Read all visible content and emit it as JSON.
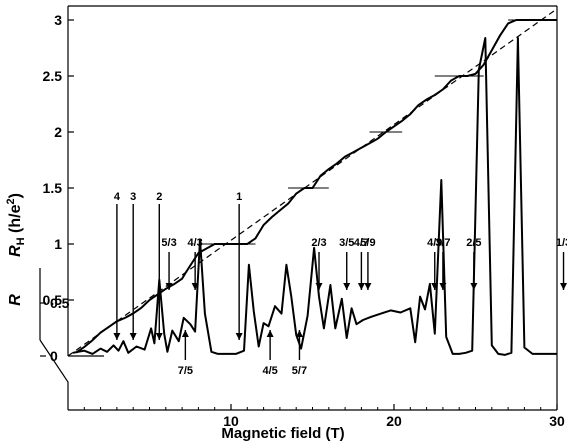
{
  "chart_data": {
    "type": "line",
    "title": "",
    "xlabel": "Magnetic field (T)",
    "ylabel_hall": "R_H (h/e²)",
    "ylabel_hall_parts": {
      "main": "R",
      "sub": "H",
      "rest": " (h/e",
      "sup": "2",
      "close": ")"
    },
    "ylabel_r": "R",
    "xlim": [
      0,
      30
    ],
    "ylim_hall": [
      0,
      3.1
    ],
    "x_ticks": [
      10,
      20,
      30
    ],
    "x_tick_labels": [
      "10",
      "20",
      "30"
    ],
    "y_ticks_hall": [
      0.5,
      1,
      1.5,
      2,
      2.5,
      3
    ],
    "y_tick_labels_hall": [
      "0.5",
      "1",
      "1.5",
      "2",
      "2.5",
      "3"
    ],
    "r_ticks": [
      0,
      0.5
    ],
    "r_tick_labels": [
      "0",
      "0.5"
    ],
    "grid": false,
    "legend": "none",
    "classical_hall_line": {
      "x": [
        0,
        30
      ],
      "y": [
        0,
        3.1
      ],
      "style": "dashed"
    },
    "hall_trace": {
      "x": [
        0.5,
        1,
        1.5,
        2,
        2.5,
        3,
        3.5,
        4,
        4.5,
        5,
        5.5,
        6,
        6.5,
        7,
        7.2,
        8,
        9,
        10,
        11,
        11.5,
        12,
        12.5,
        13,
        13.5,
        14,
        14.5,
        15,
        15.5,
        16,
        16.5,
        17,
        17.5,
        18,
        18.5,
        19,
        19.5,
        20,
        20.5,
        21,
        21.5,
        22,
        22.5,
        23,
        23.5,
        24,
        24.5,
        25,
        25.5,
        26,
        26.5,
        27,
        27.5,
        28,
        28.5,
        29,
        29.5,
        30
      ],
      "y": [
        0.03,
        0.08,
        0.14,
        0.21,
        0.26,
        0.31,
        0.34,
        0.38,
        0.43,
        0.5,
        0.55,
        0.6,
        0.64,
        0.69,
        0.74,
        0.92,
        1,
        1,
        1,
        1.05,
        1.17,
        1.24,
        1.3,
        1.36,
        1.45,
        1.5,
        1.5,
        1.61,
        1.67,
        1.72,
        1.78,
        1.82,
        1.86,
        1.9,
        1.94,
        2,
        2.05,
        2.1,
        2.16,
        2.24,
        2.29,
        2.33,
        2.38,
        2.46,
        2.5,
        2.5,
        2.52,
        2.6,
        2.73,
        2.86,
        2.97,
        3,
        3,
        3,
        3,
        3,
        3
      ]
    },
    "hall_plateau_markers": [
      {
        "value": 1,
        "label": "1",
        "x_start": 8.2,
        "x_end": 11.5
      },
      {
        "value": 1.5,
        "label": "3/2",
        "x_start": 13.5,
        "x_end": 16
      },
      {
        "value": 2,
        "label": "2",
        "x_start": 18.5,
        "x_end": 20.5
      },
      {
        "value": 2.5,
        "label": "5/2",
        "x_start": 22.5,
        "x_end": 25.5
      },
      {
        "value": 3,
        "label": "3",
        "x_start": 27,
        "x_end": 30
      }
    ],
    "r_trace": {
      "x": [
        0.3,
        1,
        1.5,
        2,
        2.4,
        2.8,
        3.1,
        3.4,
        3.7,
        4.2,
        4.7,
        5.1,
        5.3,
        5.6,
        5.9,
        6.1,
        6.4,
        6.8,
        7.1,
        7.5,
        7.8,
        8.1,
        8.4,
        8.8,
        9.2,
        9.8,
        10.3,
        10.8,
        11.1,
        11.4,
        11.7,
        12,
        12.3,
        12.7,
        13.1,
        13.4,
        13.7,
        14,
        14.3,
        14.7,
        15.1,
        15.4,
        15.7,
        16.1,
        16.4,
        16.8,
        17.1,
        17.4,
        17.7,
        18.1,
        18.6,
        19.2,
        19.8,
        20.4,
        21,
        21.3,
        21.6,
        21.9,
        22.2,
        22.5,
        22.9,
        23.2,
        23.6,
        24,
        24.4,
        24.8,
        25.2,
        25.6,
        26,
        26.4,
        26.8,
        27.2,
        27.6,
        28,
        28.5,
        29,
        29.5,
        30
      ],
      "y": [
        0.03,
        0.05,
        0.02,
        0.07,
        0.04,
        0.1,
        0.05,
        0.14,
        0.03,
        0.09,
        0.06,
        0.26,
        0.12,
        0.72,
        0.21,
        0.04,
        0.24,
        0.14,
        0.36,
        0.3,
        0.23,
        1.1,
        0.4,
        0.04,
        0.02,
        0.02,
        0.02,
        0.05,
        0.86,
        0.42,
        0.09,
        0.31,
        0.28,
        0.47,
        0.4,
        0.86,
        0.56,
        0.2,
        0.07,
        0.38,
        1.02,
        0.56,
        0.26,
        0.67,
        0.26,
        0.54,
        0.17,
        0.45,
        0.3,
        0.34,
        0.37,
        0.4,
        0.43,
        0.41,
        0.45,
        0.13,
        0.56,
        0.44,
        0.68,
        0.21,
        1.66,
        0.18,
        0.02,
        0.02,
        0.03,
        0.05,
        2.7,
        3,
        0.1,
        0.02,
        0.01,
        0.03,
        3,
        0.08,
        0.02,
        0.02,
        0.02,
        0.02
      ]
    },
    "filling_factor_annotations": [
      {
        "label": "4",
        "x": 3.0,
        "direction": "down"
      },
      {
        "label": "3",
        "x": 4.0,
        "direction": "down"
      },
      {
        "label": "2",
        "x": 5.6,
        "direction": "down"
      },
      {
        "label": "1",
        "x": 10.5,
        "direction": "down"
      },
      {
        "label": "5/3",
        "x": 6.2,
        "direction": "down"
      },
      {
        "label": "4/3",
        "x": 7.8,
        "direction": "down"
      },
      {
        "label": "7/5",
        "x": 7.2,
        "direction": "up"
      },
      {
        "label": "4/5",
        "x": 12.4,
        "direction": "up"
      },
      {
        "label": "5/7",
        "x": 14.2,
        "direction": "up"
      },
      {
        "label": "2/3",
        "x": 15.4,
        "direction": "down"
      },
      {
        "label": "3/5",
        "x": 17.1,
        "direction": "down"
      },
      {
        "label": "4/7",
        "x": 18.0,
        "direction": "down"
      },
      {
        "label": "5/9",
        "x": 18.4,
        "direction": "down"
      },
      {
        "label": "4/9",
        "x": 22.5,
        "direction": "down"
      },
      {
        "label": "3/7",
        "x": 23.0,
        "direction": "down"
      },
      {
        "label": "2/5",
        "x": 24.9,
        "direction": "down"
      },
      {
        "label": "1/3",
        "x": 30.4,
        "direction": "down"
      }
    ]
  }
}
